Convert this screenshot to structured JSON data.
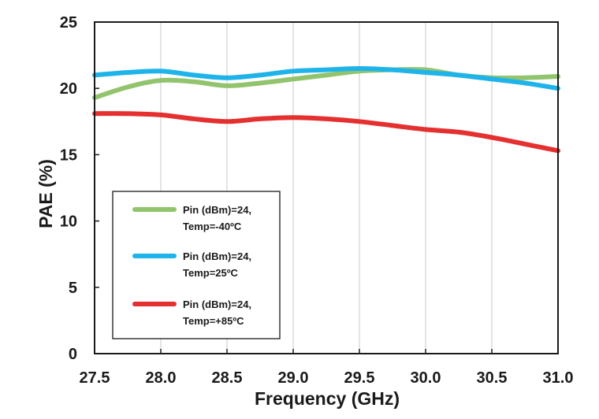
{
  "chart_data": {
    "type": "line",
    "xlabel": "Frequency (GHz)",
    "ylabel": "PAE (%)",
    "xlim": [
      27.5,
      31.0
    ],
    "ylim": [
      0,
      25
    ],
    "xticks": [
      "27.5",
      "28.0",
      "28.5",
      "29.0",
      "29.5",
      "30.0",
      "30.5",
      "31.0"
    ],
    "yticks": [
      "0",
      "5",
      "10",
      "15",
      "20",
      "25"
    ],
    "grid": "vertical",
    "legend_position": "lower-left",
    "series": [
      {
        "name": "Pin (dBm)=24, Temp=-40ºC",
        "label_lines": [
          "Pin (dBm)=24,",
          "Temp=-40ºC"
        ],
        "color": "#92c46e",
        "x": [
          27.5,
          27.75,
          28.0,
          28.25,
          28.5,
          28.75,
          29.0,
          29.25,
          29.5,
          29.75,
          30.0,
          30.25,
          30.5,
          30.75,
          31.0
        ],
        "values": [
          19.3,
          20.1,
          20.6,
          20.5,
          20.2,
          20.4,
          20.7,
          21.0,
          21.3,
          21.4,
          21.4,
          21.0,
          20.8,
          20.8,
          20.9
        ]
      },
      {
        "name": "Pin (dBm)=24, Temp=25ºC",
        "label_lines": [
          "Pin (dBm)=24,",
          "Temp=25ºC"
        ],
        "color": "#1eb4ea",
        "x": [
          27.5,
          27.75,
          28.0,
          28.25,
          28.5,
          28.75,
          29.0,
          29.25,
          29.5,
          29.75,
          30.0,
          30.25,
          30.5,
          30.75,
          31.0
        ],
        "values": [
          21.0,
          21.2,
          21.3,
          21.0,
          20.8,
          21.0,
          21.3,
          21.4,
          21.5,
          21.4,
          21.2,
          21.0,
          20.7,
          20.4,
          20.0
        ]
      },
      {
        "name": "Pin (dBm)=24, Temp=+85ºC",
        "label_lines": [
          "Pin (dBm)=24,",
          "Temp=+85ºC"
        ],
        "color": "#e53030",
        "x": [
          27.5,
          27.75,
          28.0,
          28.25,
          28.5,
          28.75,
          29.0,
          29.25,
          29.5,
          29.75,
          30.0,
          30.25,
          30.5,
          30.75,
          31.0
        ],
        "values": [
          18.1,
          18.1,
          18.0,
          17.7,
          17.5,
          17.7,
          17.8,
          17.7,
          17.5,
          17.2,
          16.9,
          16.7,
          16.3,
          15.8,
          15.3
        ]
      }
    ]
  }
}
